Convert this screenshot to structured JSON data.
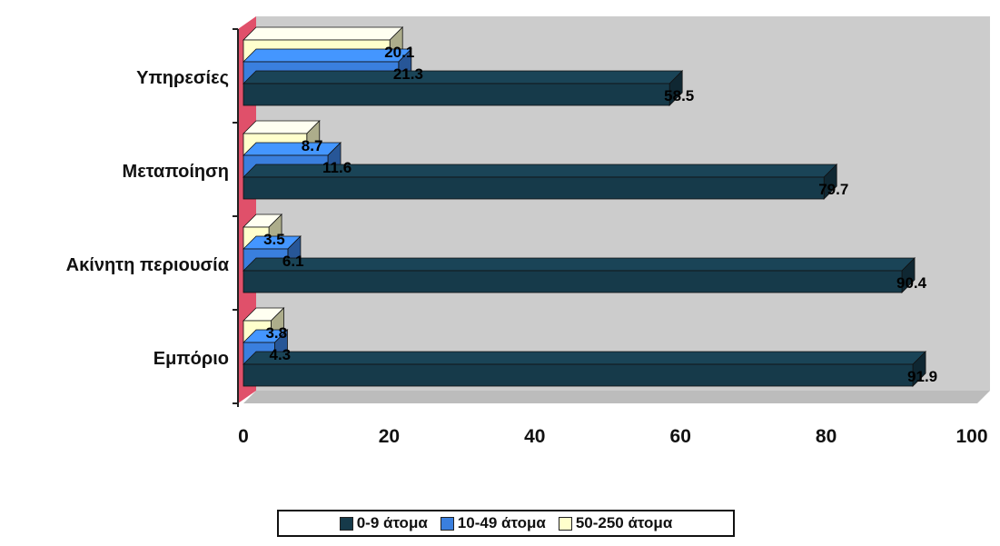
{
  "chart_data": {
    "type": "bar",
    "orientation": "horizontal",
    "stacked": false,
    "categories": [
      "Υπηρεσίες",
      "Μεταποίηση",
      "Ακίνητη περιουσία",
      "Εμπόριο"
    ],
    "series": [
      {
        "name": "50-250 άτομα",
        "values": [
          20.1,
          8.7,
          3.5,
          3.8
        ],
        "labels": [
          "20.1",
          "8.7",
          "3.5",
          "3.8"
        ],
        "color": "#FFFFCC"
      },
      {
        "name": "10-49 άτομα",
        "values": [
          21.3,
          11.6,
          6.1,
          4.3
        ],
        "labels": [
          "21.3",
          "11.6",
          "6.1",
          "4.3"
        ],
        "color": "#3A7FDE"
      },
      {
        "name": "0-9 άτομα",
        "values": [
          58.5,
          79.7,
          90.4,
          91.9
        ],
        "labels": [
          "58.5",
          "79.7",
          "90.4",
          "91.9"
        ],
        "color": "#163A4A"
      }
    ],
    "legend_order": [
      "0-9 άτομα",
      "10-49 άτομα",
      "50-250 άτομα"
    ],
    "x_ticks": [
      "0",
      "20",
      "40",
      "60",
      "80",
      "100"
    ],
    "xlim": [
      0,
      100
    ],
    "legend_position": "bottom",
    "grid": false,
    "background_color": "#CCCCCC",
    "wall_color": "#E0506A",
    "title": "",
    "xlabel": "",
    "ylabel": ""
  }
}
